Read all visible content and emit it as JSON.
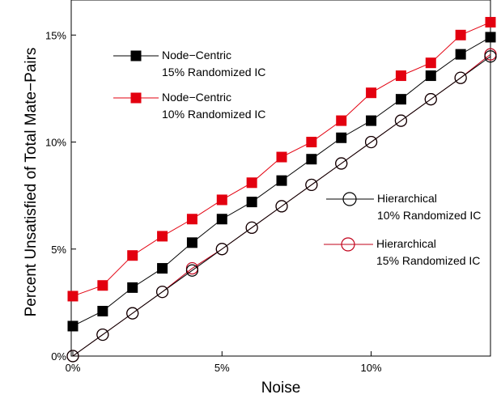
{
  "chart_data": {
    "type": "line",
    "title": "",
    "xlabel": "Noise",
    "ylabel": "Percent Unsatisfied of Total Mate−Pairs",
    "xlim": [
      0,
      14
    ],
    "ylim": [
      0,
      15.0
    ],
    "x_ticks": [
      {
        "value": 0,
        "label": "0%"
      },
      {
        "value": 5,
        "label": "5%"
      },
      {
        "value": 10,
        "label": "10%"
      }
    ],
    "y_ticks": [
      {
        "value": 0,
        "label": "0%"
      },
      {
        "value": 5,
        "label": "5%"
      },
      {
        "value": 10,
        "label": "10%"
      },
      {
        "value": 15,
        "label": "15%"
      }
    ],
    "x": [
      0,
      1,
      2,
      3,
      4,
      5,
      6,
      7,
      8,
      9,
      10,
      11,
      12,
      13,
      14
    ],
    "series": [
      {
        "name": "Node−Centric 15% Randomized IC",
        "name_lines": [
          "Node−Centric",
          "15% Randomized IC"
        ],
        "color": "#000000",
        "marker": "square",
        "values": [
          1.4,
          2.1,
          3.2,
          4.1,
          5.3,
          6.4,
          7.2,
          8.2,
          9.2,
          10.2,
          11.0,
          12.0,
          13.1,
          14.1,
          14.9
        ]
      },
      {
        "name": "Node−Centric 10% Randomized IC",
        "name_lines": [
          "Node−Centric",
          "10% Randomized IC"
        ],
        "color": "#e3000f",
        "marker": "square",
        "values": [
          2.8,
          3.3,
          4.7,
          5.6,
          6.4,
          7.3,
          8.1,
          9.3,
          10.0,
          11.0,
          12.3,
          13.1,
          13.7,
          15.0,
          15.6
        ]
      },
      {
        "name": "Hierarchical 10% Randomized IC",
        "name_lines": [
          "Hierarchical",
          "10% Randomized IC"
        ],
        "color": "#000000",
        "marker": "circle",
        "values": [
          0.0,
          1.0,
          2.0,
          3.0,
          4.0,
          5.0,
          6.0,
          7.0,
          8.0,
          9.0,
          10.0,
          11.0,
          12.0,
          13.0,
          14.0
        ]
      },
      {
        "name": "Hierarchical 15% Randomized IC",
        "name_lines": [
          "Hierarchical",
          "15% Randomized IC"
        ],
        "color": "#c1001a",
        "marker": "circle",
        "values": [
          0.0,
          1.0,
          2.0,
          3.0,
          4.1,
          5.0,
          6.0,
          7.0,
          8.0,
          9.0,
          10.0,
          11.0,
          12.0,
          13.0,
          14.1
        ]
      }
    ],
    "grid": false,
    "legend": "inside, upper-left and lower-right"
  }
}
